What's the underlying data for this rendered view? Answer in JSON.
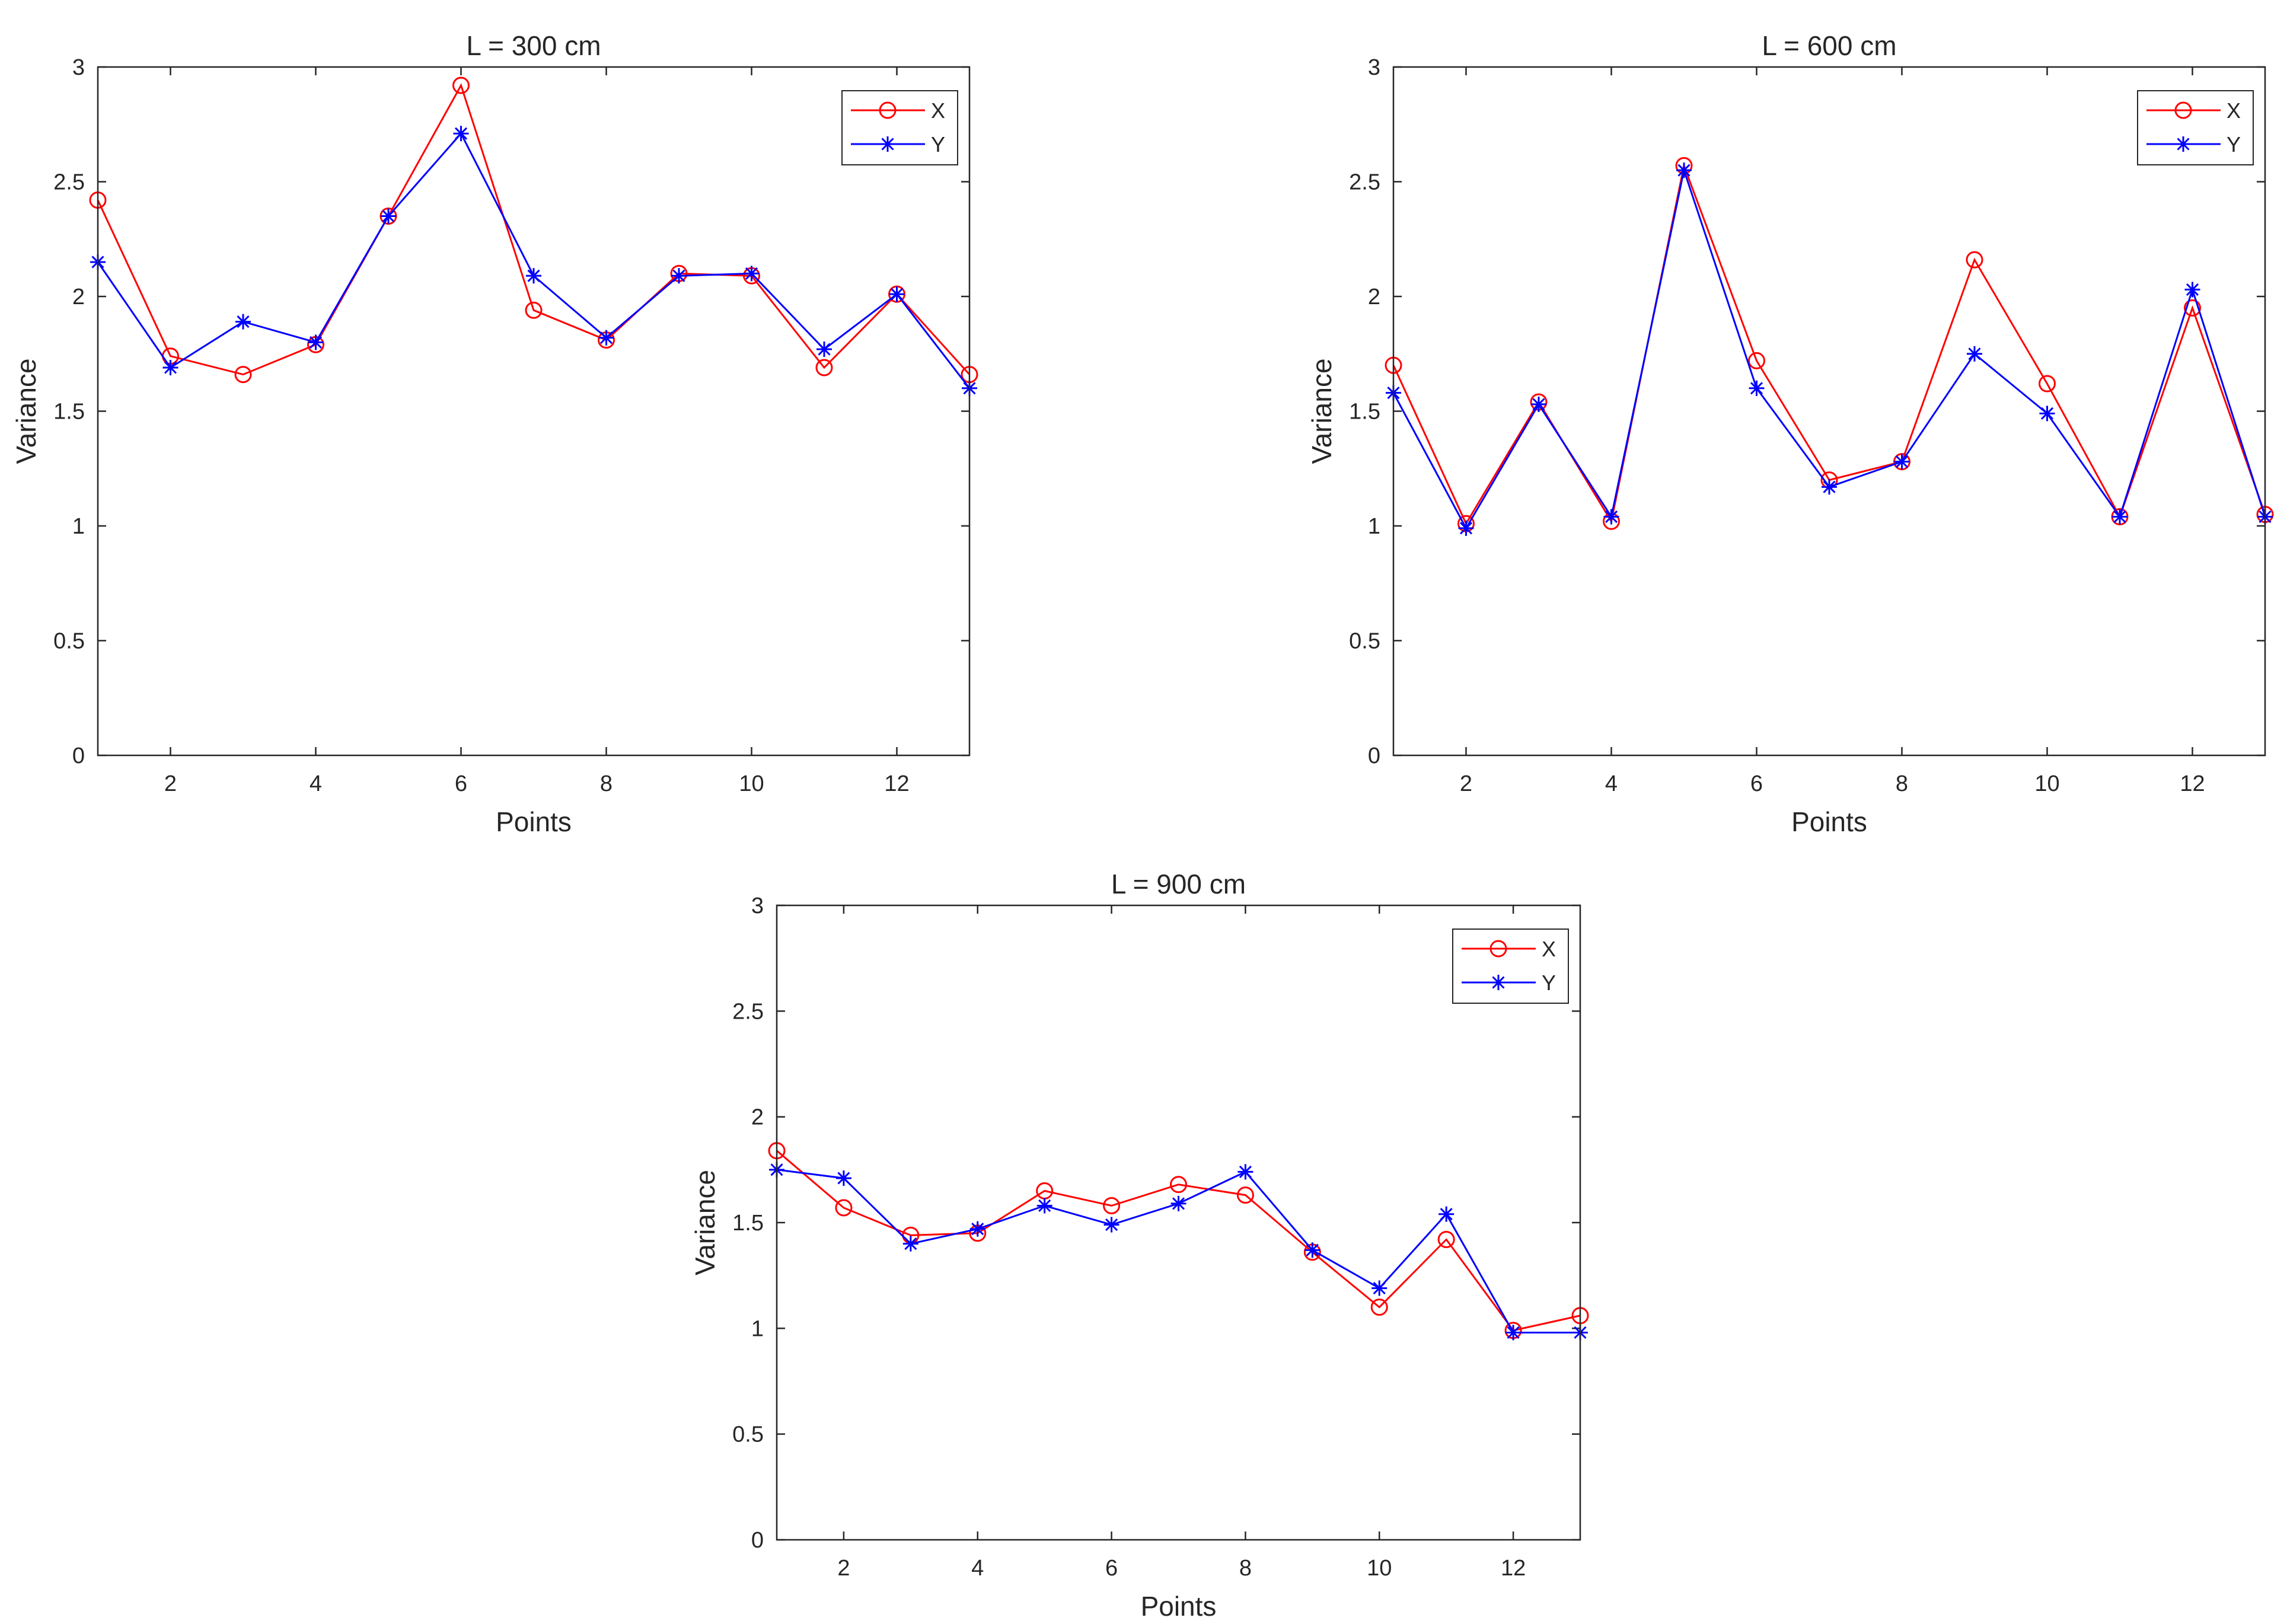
{
  "chart_data": [
    {
      "type": "line",
      "title": "L = 300 cm",
      "xlabel": "Points",
      "ylabel": "Variance",
      "xlim": [
        1,
        13
      ],
      "ylim": [
        0,
        3
      ],
      "xticks": [
        2,
        4,
        6,
        8,
        10,
        12
      ],
      "yticks": [
        0,
        0.5,
        1,
        1.5,
        2,
        2.5,
        3
      ],
      "legend_position": "top-right",
      "x": [
        1,
        2,
        3,
        4,
        5,
        6,
        7,
        8,
        9,
        10,
        11,
        12,
        13
      ],
      "series": [
        {
          "name": "X",
          "marker": "circle",
          "color": "#ff0000",
          "values": [
            2.42,
            1.74,
            1.66,
            1.79,
            2.35,
            2.92,
            1.94,
            1.81,
            2.1,
            2.09,
            1.69,
            2.01,
            1.66
          ]
        },
        {
          "name": "Y",
          "marker": "asterisk",
          "color": "#0000ff",
          "values": [
            2.15,
            1.69,
            1.89,
            1.8,
            2.35,
            2.71,
            2.09,
            1.82,
            2.09,
            2.1,
            1.77,
            2.01,
            1.6
          ]
        }
      ]
    },
    {
      "type": "line",
      "title": "L = 600 cm",
      "xlabel": "Points",
      "ylabel": "Variance",
      "xlim": [
        1,
        13
      ],
      "ylim": [
        0,
        3
      ],
      "xticks": [
        2,
        4,
        6,
        8,
        10,
        12
      ],
      "yticks": [
        0,
        0.5,
        1,
        1.5,
        2,
        2.5,
        3
      ],
      "legend_position": "top-right",
      "x": [
        1,
        2,
        3,
        4,
        5,
        6,
        7,
        8,
        9,
        10,
        11,
        12,
        13
      ],
      "series": [
        {
          "name": "X",
          "marker": "circle",
          "color": "#ff0000",
          "values": [
            1.7,
            1.01,
            1.54,
            1.02,
            2.57,
            1.72,
            1.2,
            1.28,
            2.16,
            1.62,
            1.04,
            1.95,
            1.05
          ]
        },
        {
          "name": "Y",
          "marker": "asterisk",
          "color": "#0000ff",
          "values": [
            1.58,
            0.99,
            1.53,
            1.04,
            2.55,
            1.6,
            1.17,
            1.28,
            1.75,
            1.49,
            1.04,
            2.03,
            1.04
          ]
        }
      ]
    },
    {
      "type": "line",
      "title": "L = 900 cm",
      "xlabel": "Points",
      "ylabel": "Variance",
      "xlim": [
        1,
        13
      ],
      "ylim": [
        0,
        3
      ],
      "xticks": [
        2,
        4,
        6,
        8,
        10,
        12
      ],
      "yticks": [
        0,
        0.5,
        1,
        1.5,
        2,
        2.5,
        3
      ],
      "legend_position": "top-right",
      "x": [
        1,
        2,
        3,
        4,
        5,
        6,
        7,
        8,
        9,
        10,
        11,
        12,
        13
      ],
      "series": [
        {
          "name": "X",
          "marker": "circle",
          "color": "#ff0000",
          "values": [
            1.84,
            1.57,
            1.44,
            1.45,
            1.65,
            1.58,
            1.68,
            1.63,
            1.36,
            1.1,
            1.42,
            0.99,
            1.06
          ]
        },
        {
          "name": "Y",
          "marker": "asterisk",
          "color": "#0000ff",
          "values": [
            1.75,
            1.71,
            1.4,
            1.47,
            1.58,
            1.49,
            1.59,
            1.74,
            1.37,
            1.19,
            1.54,
            0.98,
            0.98
          ]
        }
      ]
    }
  ]
}
